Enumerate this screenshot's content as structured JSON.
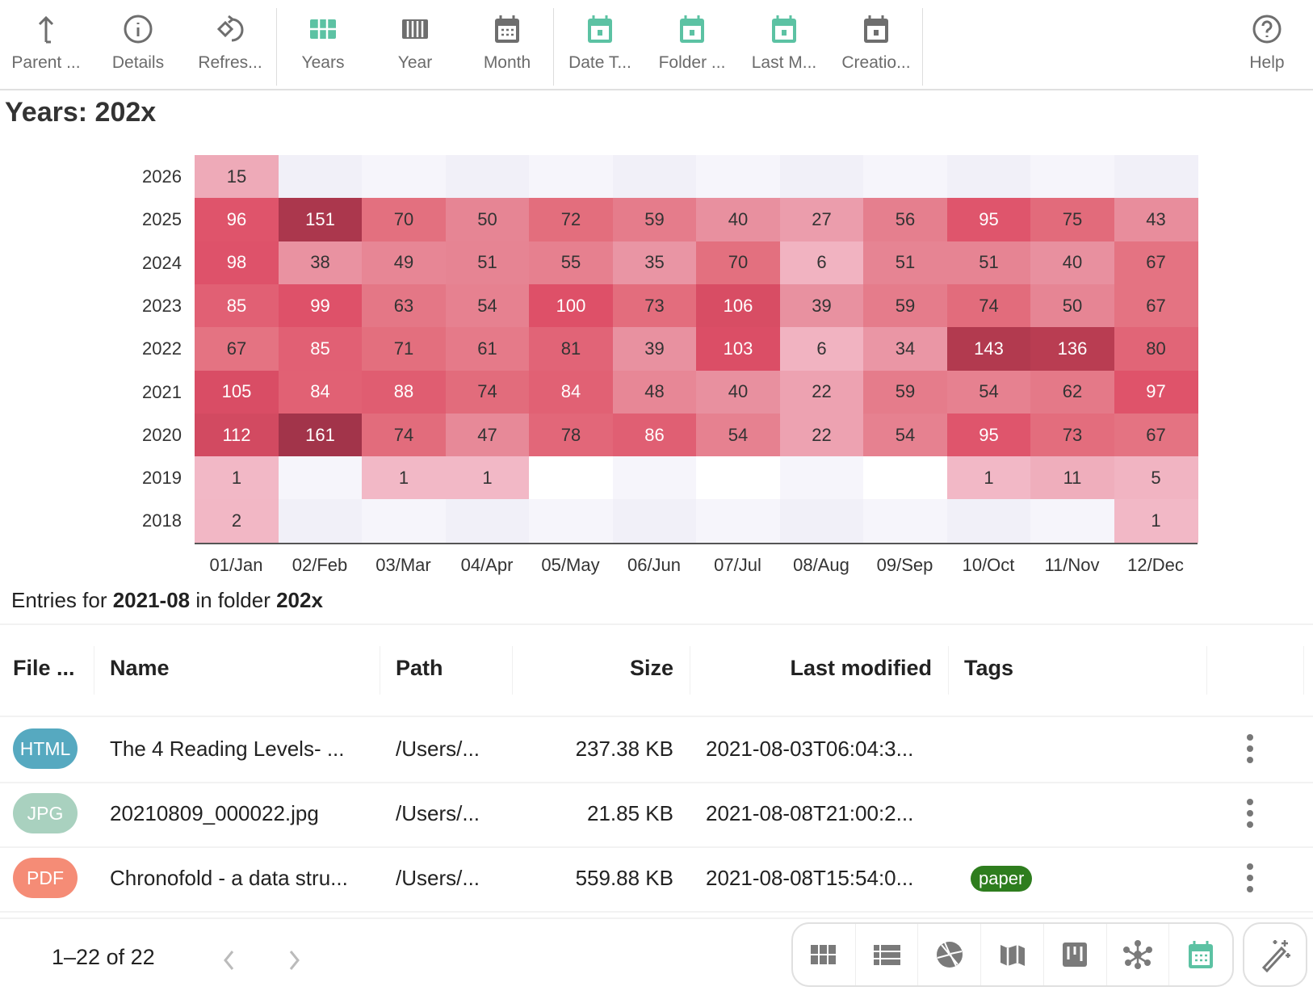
{
  "toolbar": {
    "items": [
      {
        "label": "Parent ...",
        "icon": "arrow-up-icon"
      },
      {
        "label": "Details",
        "icon": "info-icon"
      },
      {
        "label": "Refres...",
        "icon": "refresh-icon"
      },
      {
        "label": "Years",
        "icon": "grid-icon"
      },
      {
        "label": "Year",
        "icon": "columns-icon"
      },
      {
        "label": "Month",
        "icon": "calendar-icon"
      },
      {
        "label": "Date T...",
        "icon": "calendar-date-icon"
      },
      {
        "label": "Folder ...",
        "icon": "calendar-date-icon"
      },
      {
        "label": "Last M...",
        "icon": "calendar-date-icon"
      },
      {
        "label": "Creatio...",
        "icon": "calendar-date-icon"
      }
    ],
    "help": "Help",
    "accent": "#5cc2a3",
    "icon_gray": "#6e6e6e"
  },
  "title": "Years: 202x",
  "chart_data": {
    "type": "heatmap",
    "rows": [
      "2026",
      "2025",
      "2024",
      "2023",
      "2022",
      "2021",
      "2020",
      "2019",
      "2018"
    ],
    "columns": [
      "01/Jan",
      "02/Feb",
      "03/Mar",
      "04/Apr",
      "05/May",
      "06/Jun",
      "07/Jul",
      "08/Aug",
      "09/Sep",
      "10/Oct",
      "11/Nov",
      "12/Dec"
    ],
    "values": [
      [
        15,
        null,
        null,
        null,
        null,
        null,
        null,
        null,
        null,
        null,
        null,
        null
      ],
      [
        96,
        151,
        70,
        50,
        72,
        59,
        40,
        27,
        56,
        95,
        75,
        43
      ],
      [
        98,
        38,
        49,
        51,
        55,
        35,
        70,
        6,
        51,
        51,
        40,
        67
      ],
      [
        85,
        99,
        63,
        54,
        100,
        73,
        106,
        39,
        59,
        74,
        50,
        67
      ],
      [
        67,
        85,
        71,
        61,
        81,
        39,
        103,
        6,
        34,
        143,
        136,
        80
      ],
      [
        105,
        84,
        88,
        74,
        84,
        48,
        40,
        22,
        59,
        54,
        62,
        97
      ],
      [
        112,
        161,
        74,
        47,
        78,
        86,
        54,
        22,
        54,
        95,
        73,
        67
      ],
      [
        1,
        null,
        1,
        1,
        null,
        null,
        null,
        null,
        null,
        1,
        11,
        5
      ],
      [
        2,
        null,
        null,
        null,
        null,
        null,
        null,
        null,
        null,
        null,
        null,
        1
      ]
    ],
    "color_scale": [
      "#f2b8c6",
      "#e8909f",
      "#e3707f",
      "#de5068",
      "#b53b50",
      "#a2344a"
    ]
  },
  "entries": {
    "prefix": "Entries for ",
    "period": "2021-08",
    "middle": " in folder ",
    "folder": "202x"
  },
  "table": {
    "headers": [
      "File ...",
      "Name",
      "Path",
      "Size",
      "Last modified",
      "Tags"
    ],
    "rows": [
      {
        "type": "HTML",
        "color": "#56a9c0",
        "name": "The 4 Reading Levels- ...",
        "path": "/Users/...",
        "size": "237.38 KB",
        "modified": "2021-08-03T06:04:3...",
        "tag": ""
      },
      {
        "type": "JPG",
        "color": "#a9d1bf",
        "name": "20210809_000022.jpg",
        "path": "/Users/...",
        "size": "21.85 KB",
        "modified": "2021-08-08T21:00:2...",
        "tag": ""
      },
      {
        "type": "PDF",
        "color": "#f58c76",
        "name": "Chronofold - a data stru...",
        "path": "/Users/...",
        "size": "559.88 KB",
        "modified": "2021-08-08T15:54:0...",
        "tag": "paper"
      }
    ]
  },
  "pager": {
    "text": "1–22 of 22"
  },
  "views": [
    "grid-view-icon",
    "list-view-icon",
    "gallery-icon",
    "map-icon",
    "kanban-icon",
    "graph-icon",
    "calendar-view-icon"
  ],
  "active_view": "calendar-view-icon"
}
